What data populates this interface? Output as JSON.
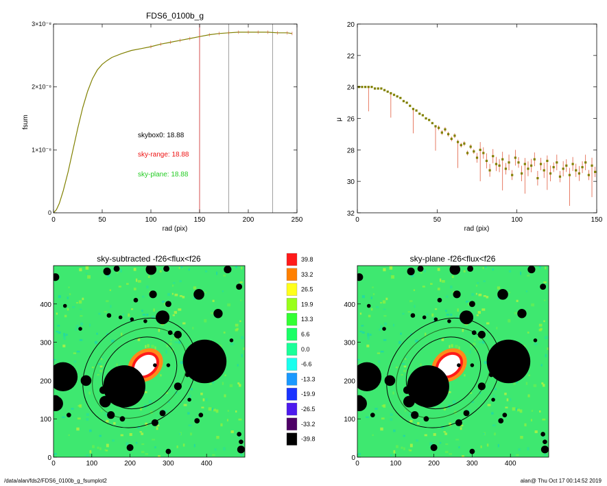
{
  "footer": {
    "path": "/data/alan/fds2/FDS6_0100b_g_fsumplot2",
    "stamp": "alan@  Thu Oct 17 00:14:52 2019"
  },
  "chart_data": [
    {
      "id": "growth-curve",
      "type": "line",
      "title": "FDS6_0100b_g",
      "xlabel": "rad (pix)",
      "ylabel": "fsum",
      "xlim": [
        0,
        250
      ],
      "ylim": [
        0,
        3e-08
      ],
      "x_ticks": [
        0,
        50,
        100,
        150,
        200,
        250
      ],
      "y_ticks": [
        0,
        1e-08,
        2e-08,
        3e-08
      ],
      "y_tick_labels": [
        "0",
        "1×10⁻⁸",
        "2×10⁻⁸",
        "3×10⁻⁸"
      ],
      "series": [
        {
          "color": "#808000",
          "x": [
            0,
            3,
            6,
            10,
            15,
            20,
            25,
            30,
            35,
            40,
            45,
            50,
            55,
            60,
            70,
            80,
            90,
            100,
            110,
            120,
            130,
            140,
            150,
            160,
            170,
            180,
            190,
            200,
            210,
            220,
            230,
            240,
            245
          ],
          "y": [
            0,
            5e-10,
            1.5e-09,
            3.5e-09,
            6.5e-09,
            1e-08,
            1.35e-08,
            1.67e-08,
            1.93e-08,
            2.13e-08,
            2.27e-08,
            2.36e-08,
            2.42e-08,
            2.47e-08,
            2.53e-08,
            2.58e-08,
            2.61e-08,
            2.64e-08,
            2.68e-08,
            2.71e-08,
            2.74e-08,
            2.77e-08,
            2.8e-08,
            2.83e-08,
            2.85e-08,
            2.86e-08,
            2.87e-08,
            2.87e-08,
            2.87e-08,
            2.87e-08,
            2.86e-08,
            2.86e-08,
            2.85e-08
          ]
        }
      ],
      "vlines": [
        {
          "x": 150,
          "color": "#cc2222"
        },
        {
          "x": 180,
          "color": "#888888"
        },
        {
          "x": 225,
          "color": "#888888"
        }
      ],
      "annotations": [
        {
          "text": "skybox0: 18.88",
          "color": "#000000"
        },
        {
          "text": "sky-range: 18.88",
          "color": "#ee1111"
        },
        {
          "text": "sky-plane: 18.88",
          "color": "#22cc22"
        }
      ]
    },
    {
      "id": "surface-brightness",
      "type": "scatter",
      "title": "",
      "xlabel": "rad (pix)",
      "ylabel": "μ",
      "xlim": [
        0,
        150
      ],
      "ylim": [
        32,
        20
      ],
      "x_ticks": [
        0,
        50,
        100,
        150
      ],
      "y_ticks": [
        20,
        22,
        24,
        26,
        28,
        30,
        32
      ],
      "series": [
        {
          "color": "#808000",
          "x": [
            1,
            3,
            5,
            7,
            9,
            11,
            13,
            15,
            17,
            19,
            21,
            23,
            25,
            27,
            29,
            31,
            33,
            35,
            37,
            39,
            41,
            43,
            45,
            47,
            49,
            51,
            53,
            55,
            57,
            59,
            61,
            63,
            65,
            67,
            69,
            71,
            73,
            75,
            77,
            79,
            81,
            83,
            85,
            87,
            89,
            91,
            93,
            95,
            97,
            99,
            101,
            103,
            105,
            107,
            109,
            111,
            113,
            115,
            117,
            119,
            121,
            123,
            125,
            127,
            129,
            131,
            133,
            135,
            137,
            139,
            141,
            143,
            145,
            147,
            149
          ],
          "y": [
            24.0,
            24.0,
            24.0,
            24.0,
            24.0,
            24.1,
            24.1,
            24.1,
            24.2,
            24.3,
            24.4,
            24.5,
            24.6,
            24.7,
            24.9,
            25.0,
            25.2,
            25.4,
            25.5,
            25.7,
            25.8,
            26.0,
            26.1,
            26.3,
            26.5,
            26.6,
            26.9,
            26.7,
            27.0,
            27.3,
            27.1,
            27.5,
            27.7,
            27.6,
            28.2,
            27.8,
            28.1,
            28.5,
            28.0,
            28.2,
            28.7,
            29.3,
            28.4,
            28.9,
            29.0,
            28.6,
            29.2,
            28.8,
            29.6,
            28.5,
            28.8,
            29.5,
            28.9,
            29.2,
            29.0,
            28.6,
            29.8,
            28.9,
            29.3,
            28.7,
            29.5,
            29.1,
            28.8,
            29.7,
            29.2,
            29.0,
            29.6,
            28.9,
            29.3,
            29.5,
            29.1,
            28.8,
            29.6,
            29.0,
            29.4
          ]
        }
      ]
    },
    {
      "id": "sky-subtracted",
      "type": "heatmap",
      "title": "sky-subtracted -f26<flux<f26",
      "xlim": [
        0,
        500
      ],
      "ylim": [
        0,
        500
      ],
      "x_ticks": [
        0,
        100,
        200,
        300,
        400
      ],
      "y_ticks": [
        0,
        100,
        200,
        300,
        400
      ]
    },
    {
      "id": "sky-plane",
      "type": "heatmap",
      "title": "sky-plane -f26<flux<f26",
      "xlim": [
        0,
        500
      ],
      "ylim": [
        0,
        500
      ],
      "x_ticks": [
        0,
        100,
        200,
        300,
        400
      ],
      "y_ticks": [
        0,
        100,
        200,
        300,
        400
      ]
    },
    {
      "id": "colorbar",
      "type": "table",
      "levels": [
        "39.8",
        "33.2",
        "26.5",
        "19.9",
        "13.3",
        "6.6",
        "0.0",
        "-6.6",
        "-13.3",
        "-19.9",
        "-26.5",
        "-33.2",
        "-39.8"
      ],
      "colors": [
        "#ff1a1a",
        "#ff8000",
        "#ffff1a",
        "#99ff1a",
        "#33ff33",
        "#1aff66",
        "#1aff99",
        "#1affee",
        "#1a99ff",
        "#1a33ff",
        "#4d1aee",
        "#4d0066",
        "#000000"
      ]
    }
  ]
}
